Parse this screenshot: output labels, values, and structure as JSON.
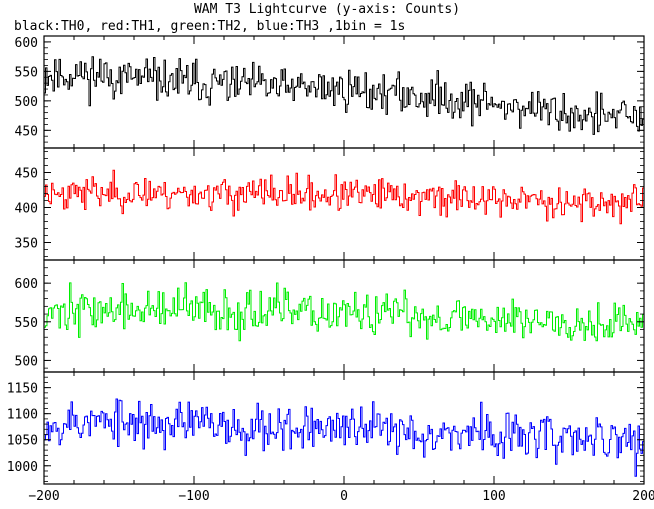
{
  "chart_data": {
    "type": "line",
    "title": "WAM T3 Lightcurve (y-axis: Counts)",
    "subtitle": "black:TH0, red:TH1, green:TH2, blue:TH3 ,1bin = 1s",
    "xlim": [
      -200,
      200
    ],
    "x_ticks": [
      "-200",
      "-100",
      "0",
      "100",
      "200"
    ],
    "grid": false,
    "panels": [
      {
        "id": "TH0",
        "color": "#000000",
        "ylim": [
          420,
          610
        ],
        "yticks": [
          450,
          500,
          550,
          600
        ],
        "trend": [
          [
            -200,
            545
          ],
          [
            -170,
            545
          ],
          [
            -140,
            538
          ],
          [
            -110,
            532
          ],
          [
            -80,
            528
          ],
          [
            -40,
            522
          ],
          [
            0,
            520
          ],
          [
            40,
            510
          ],
          [
            80,
            502
          ],
          [
            120,
            488
          ],
          [
            160,
            475
          ],
          [
            200,
            470
          ]
        ],
        "noise": 25,
        "seed": 11
      },
      {
        "id": "TH1",
        "color": "#ff0000",
        "ylim": [
          325,
          485
        ],
        "yticks": [
          350,
          400,
          450
        ],
        "trend": [
          [
            -200,
            422
          ],
          [
            -100,
            420
          ],
          [
            0,
            418
          ],
          [
            100,
            412
          ],
          [
            200,
            405
          ]
        ],
        "noise": 17,
        "seed": 23
      },
      {
        "id": "TH2",
        "color": "#00ee00",
        "ylim": [
          485,
          630
        ],
        "yticks": [
          500,
          550,
          600
        ],
        "trend": [
          [
            -200,
            565
          ],
          [
            -100,
            565
          ],
          [
            0,
            560
          ],
          [
            100,
            555
          ],
          [
            200,
            548
          ]
        ],
        "noise": 20,
        "seed": 37
      },
      {
        "id": "TH3",
        "color": "#0000ff",
        "ylim": [
          965,
          1180
        ],
        "yticks": [
          1000,
          1050,
          1100,
          1150
        ],
        "trend": [
          [
            -200,
            1085
          ],
          [
            -100,
            1080
          ],
          [
            0,
            1072
          ],
          [
            100,
            1060
          ],
          [
            200,
            1045
          ]
        ],
        "noise": 32,
        "seed": 53
      }
    ]
  }
}
